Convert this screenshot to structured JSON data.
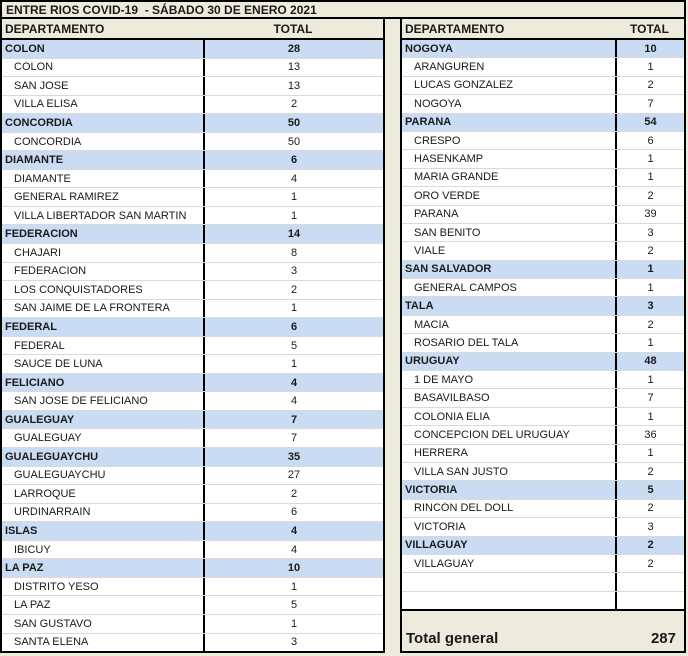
{
  "title": "ENTRE RIOS COVID-19  - SÁBADO 30 DE ENERO 2021",
  "columns": {
    "department": "DEPARTAMENTO",
    "total": "TOTAL"
  },
  "colors": {
    "page_background": "#edecdc",
    "department_row": "#c9dcf3",
    "grid_line": "#d9d9d9",
    "border": "#000000",
    "text": "#1a1a1a"
  },
  "left_table": {
    "rows": [
      {
        "type": "dept",
        "label": "COLON",
        "value": "28"
      },
      {
        "type": "city",
        "label": "COLON",
        "value": "13"
      },
      {
        "type": "city",
        "label": "SAN JOSE",
        "value": "13"
      },
      {
        "type": "city",
        "label": "VILLA ELISA",
        "value": "2"
      },
      {
        "type": "dept",
        "label": "CONCORDIA",
        "value": "50"
      },
      {
        "type": "city",
        "label": "CONCORDIA",
        "value": "50"
      },
      {
        "type": "dept",
        "label": "DIAMANTE",
        "value": "6"
      },
      {
        "type": "city",
        "label": "DIAMANTE",
        "value": "4"
      },
      {
        "type": "city",
        "label": "GENERAL RAMIREZ",
        "value": "1"
      },
      {
        "type": "city",
        "label": "VILLA LIBERTADOR SAN MARTIN",
        "value": "1"
      },
      {
        "type": "dept",
        "label": "FEDERACION",
        "value": "14"
      },
      {
        "type": "city",
        "label": "CHAJARI",
        "value": "8"
      },
      {
        "type": "city",
        "label": "FEDERACION",
        "value": "3"
      },
      {
        "type": "city",
        "label": "LOS CONQUISTADORES",
        "value": "2"
      },
      {
        "type": "city",
        "label": "SAN JAIME DE LA FRONTERA",
        "value": "1"
      },
      {
        "type": "dept",
        "label": "FEDERAL",
        "value": "6"
      },
      {
        "type": "city",
        "label": "FEDERAL",
        "value": "5"
      },
      {
        "type": "city",
        "label": "SAUCE DE LUNA",
        "value": "1"
      },
      {
        "type": "dept",
        "label": "FELICIANO",
        "value": "4"
      },
      {
        "type": "city",
        "label": "SAN JOSE DE FELICIANO",
        "value": "4"
      },
      {
        "type": "dept",
        "label": "GUALEGUAY",
        "value": "7"
      },
      {
        "type": "city",
        "label": "GUALEGUAY",
        "value": "7"
      },
      {
        "type": "dept",
        "label": "GUALEGUAYCHU",
        "value": "35"
      },
      {
        "type": "city",
        "label": "GUALEGUAYCHU",
        "value": "27"
      },
      {
        "type": "city",
        "label": "LARROQUE",
        "value": "2"
      },
      {
        "type": "city",
        "label": "URDINARRAIN",
        "value": "6"
      },
      {
        "type": "dept",
        "label": "ISLAS",
        "value": "4"
      },
      {
        "type": "city",
        "label": "IBICUY",
        "value": "4"
      },
      {
        "type": "dept",
        "label": "LA PAZ",
        "value": "10"
      },
      {
        "type": "city",
        "label": "DISTRITO YESO",
        "value": "1"
      },
      {
        "type": "city",
        "label": "LA PAZ",
        "value": "5"
      },
      {
        "type": "city",
        "label": "SAN GUSTAVO",
        "value": "1"
      },
      {
        "type": "city",
        "label": "SANTA ELENA",
        "value": "3"
      }
    ]
  },
  "right_table": {
    "rows": [
      {
        "type": "dept",
        "label": "NOGOYA",
        "value": "10"
      },
      {
        "type": "city",
        "label": "ARANGUREN",
        "value": "1"
      },
      {
        "type": "city",
        "label": "LUCAS GONZALEZ",
        "value": "2"
      },
      {
        "type": "city",
        "label": "NOGOYA",
        "value": "7"
      },
      {
        "type": "dept",
        "label": "PARANA",
        "value": "54"
      },
      {
        "type": "city",
        "label": "CRESPO",
        "value": "6"
      },
      {
        "type": "city",
        "label": "HASENKAMP",
        "value": "1"
      },
      {
        "type": "city",
        "label": "MARIA GRANDE",
        "value": "1"
      },
      {
        "type": "city",
        "label": "ORO VERDE",
        "value": "2"
      },
      {
        "type": "city",
        "label": "PARANA",
        "value": "39"
      },
      {
        "type": "city",
        "label": "SAN BENITO",
        "value": "3"
      },
      {
        "type": "city",
        "label": "VIALE",
        "value": "2"
      },
      {
        "type": "dept",
        "label": "SAN SALVADOR",
        "value": "1"
      },
      {
        "type": "city",
        "label": "GENERAL CAMPOS",
        "value": "1"
      },
      {
        "type": "dept",
        "label": "TALA",
        "value": "3"
      },
      {
        "type": "city",
        "label": "MACIA",
        "value": "2"
      },
      {
        "type": "city",
        "label": "ROSARIO DEL TALA",
        "value": "1"
      },
      {
        "type": "dept",
        "label": "URUGUAY",
        "value": "48"
      },
      {
        "type": "city",
        "label": "1 DE MAYO",
        "value": "1"
      },
      {
        "type": "city",
        "label": "BASAVILBASO",
        "value": "7"
      },
      {
        "type": "city",
        "label": "COLONIA ELIA",
        "value": "1"
      },
      {
        "type": "city",
        "label": "CONCEPCION DEL URUGUAY",
        "value": "36"
      },
      {
        "type": "city",
        "label": "HERRERA",
        "value": "1"
      },
      {
        "type": "city",
        "label": "VILLA SAN JUSTO",
        "value": "2"
      },
      {
        "type": "dept",
        "label": "VICTORIA",
        "value": "5"
      },
      {
        "type": "city",
        "label": "RINCÓN DEL DOLL",
        "value": "2"
      },
      {
        "type": "city",
        "label": "VICTORIA",
        "value": "3"
      },
      {
        "type": "dept",
        "label": "VILLAGUAY",
        "value": "2"
      },
      {
        "type": "city",
        "label": "VILLAGUAY",
        "value": "2"
      },
      {
        "type": "empty",
        "label": "",
        "value": ""
      },
      {
        "type": "empty",
        "label": "",
        "value": ""
      }
    ]
  },
  "grand_total": {
    "label": "Total general",
    "value": "287"
  }
}
